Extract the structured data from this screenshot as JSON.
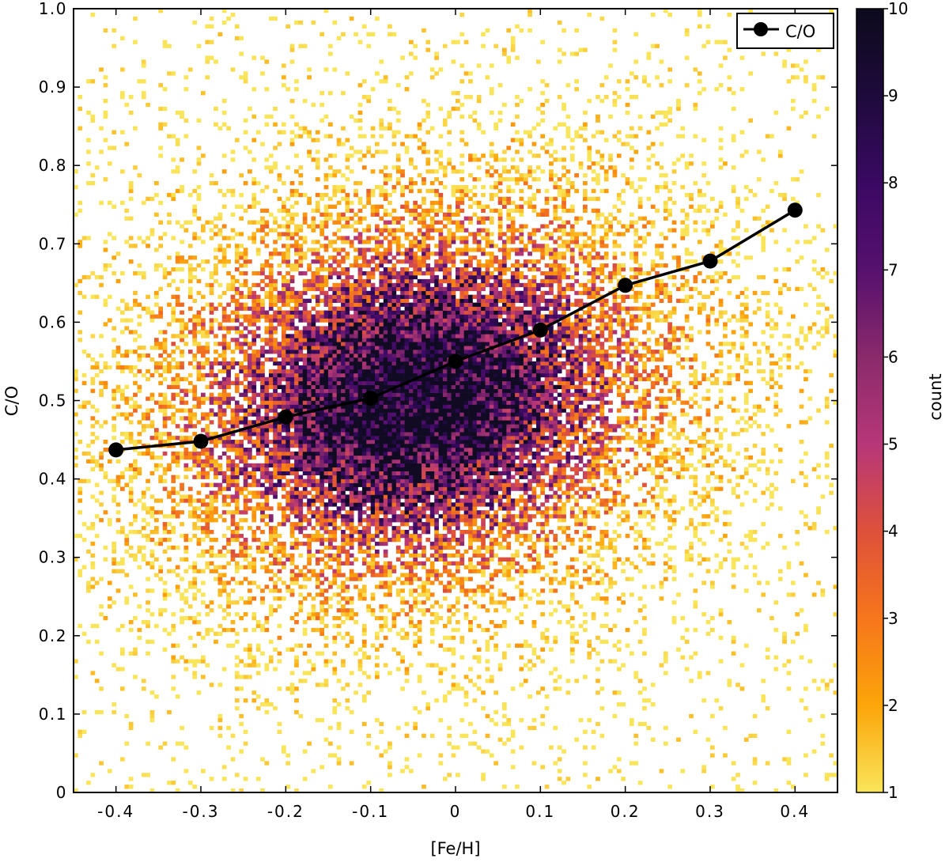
{
  "chart_data": {
    "type": "heatmap",
    "title": "",
    "xlabel": "[Fe/H]",
    "ylabel": "C/O",
    "xlim": [
      -0.45,
      0.45
    ],
    "ylim": [
      0,
      1.0
    ],
    "x_ticks": [
      -0.4,
      -0.3,
      -0.2,
      -0.1,
      0,
      0.1,
      0.2,
      0.3,
      0.4
    ],
    "x_tick_labels": [
      "-0.4",
      "-0.3",
      "-0.2",
      "-0.1",
      "0",
      "0.1",
      "0.2",
      "0.3",
      "0.4"
    ],
    "y_ticks": [
      0,
      0.1,
      0.2,
      0.3,
      0.4,
      0.5,
      0.6,
      0.7,
      0.8,
      0.9,
      1.0
    ],
    "y_tick_labels": [
      "0",
      "0.1",
      "0.2",
      "0.3",
      "0.4",
      "0.5",
      "0.6",
      "0.7",
      "0.8",
      "0.9",
      "1.0"
    ],
    "grid": false,
    "colorbar": {
      "label": "count",
      "min": 1,
      "max": 10,
      "ticks": [
        1,
        2,
        3,
        4,
        5,
        6,
        7,
        8,
        9,
        10
      ],
      "tick_labels": [
        "1",
        "2",
        "3",
        "4",
        "5",
        "6",
        "7",
        "8",
        "9",
        "10"
      ],
      "colormap": "inferno_r",
      "colors": [
        "#f9e55a",
        "#fca50a",
        "#f6761b",
        "#dd513a",
        "#b73779",
        "#8a2a6b",
        "#56106e",
        "#3a0963",
        "#1e0a3c",
        "#0d0a1c"
      ]
    },
    "density": {
      "description": "2D histogram of stellar samples",
      "peak_x": -0.05,
      "peak_y": 0.5,
      "bin_width_x": 0.005,
      "bin_width_y": 0.005
    },
    "series": [
      {
        "name": "C/O",
        "style": "line-with-markers",
        "color": "#000000",
        "x": [
          -0.4,
          -0.3,
          -0.2,
          -0.1,
          0.0,
          0.1,
          0.2,
          0.3,
          0.4
        ],
        "y": [
          0.437,
          0.448,
          0.479,
          0.503,
          0.55,
          0.59,
          0.647,
          0.678,
          0.743
        ]
      }
    ],
    "legend": {
      "position": "top-right",
      "label": "C/O"
    }
  }
}
